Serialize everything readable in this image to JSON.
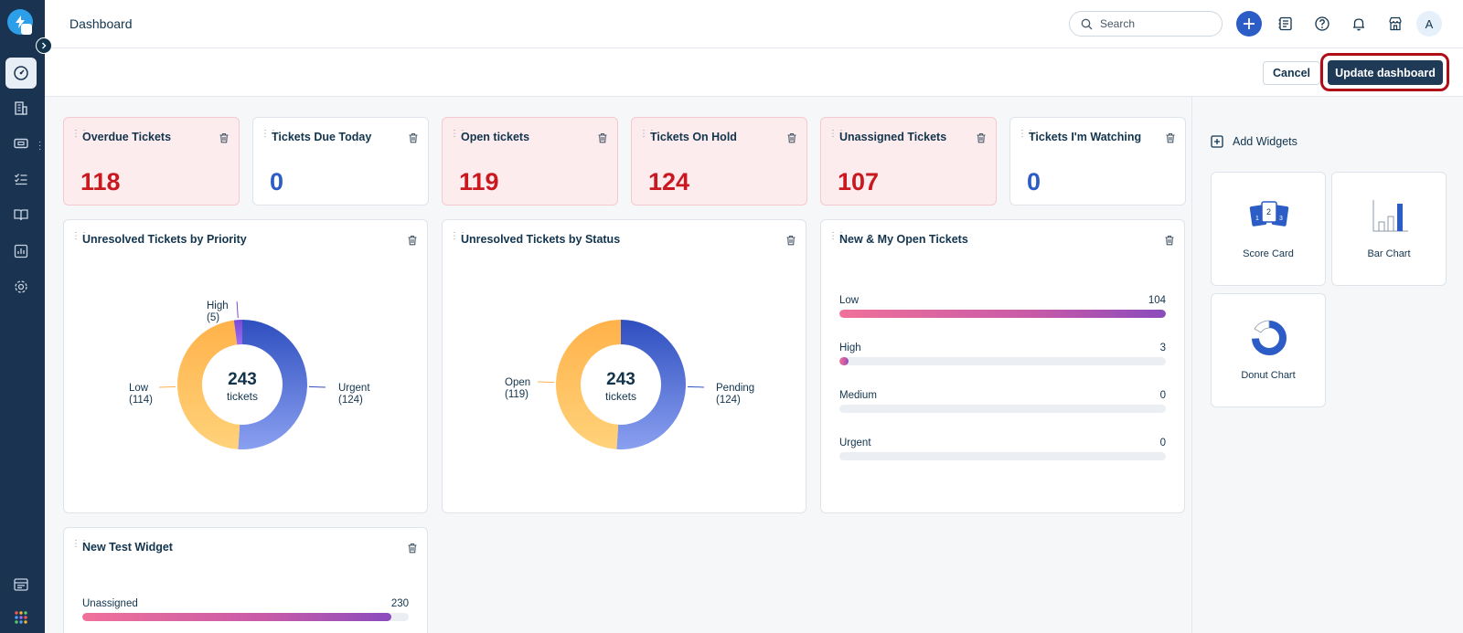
{
  "header": {
    "title": "Dashboard",
    "search_placeholder": "Search",
    "avatar_initial": "A"
  },
  "actions": {
    "cancel": "Cancel",
    "update": "Update dashboard"
  },
  "scorecards": [
    {
      "title": "Overdue Tickets",
      "value": "118",
      "alert": true
    },
    {
      "title": "Tickets Due Today",
      "value": "0",
      "alert": false
    },
    {
      "title": "Open tickets",
      "value": "119",
      "alert": true
    },
    {
      "title": "Tickets On Hold",
      "value": "124",
      "alert": true
    },
    {
      "title": "Unassigned Tickets",
      "value": "107",
      "alert": true
    },
    {
      "title": "Tickets I'm Watching",
      "value": "0",
      "alert": false
    }
  ],
  "priority_widget": {
    "title": "Unresolved Tickets by Priority",
    "total": "243",
    "unit": "tickets",
    "labels": {
      "high_name": "High",
      "high_count": "(5)",
      "low_name": "Low",
      "low_count": "(114)",
      "urgent_name": "Urgent",
      "urgent_count": "(124)"
    }
  },
  "status_widget": {
    "title": "Unresolved Tickets by Status",
    "total": "243",
    "unit": "tickets",
    "labels": {
      "open_name": "Open",
      "open_count": "(119)",
      "pending_name": "Pending",
      "pending_count": "(124)"
    }
  },
  "open_widget": {
    "title": "New & My Open Tickets",
    "rows": [
      {
        "label": "Low",
        "value": "104"
      },
      {
        "label": "High",
        "value": "3"
      },
      {
        "label": "Medium",
        "value": "0"
      },
      {
        "label": "Urgent",
        "value": "0"
      }
    ]
  },
  "test_widget": {
    "title": "New Test Widget",
    "rows": [
      {
        "label": "Unassigned",
        "value": "230"
      }
    ]
  },
  "panel": {
    "title": "Add Widgets",
    "widgets": [
      "Score Card",
      "Bar Chart",
      "Donut Chart"
    ]
  },
  "chart_data": [
    {
      "type": "pie",
      "title": "Unresolved Tickets by Priority",
      "categories": [
        "Urgent",
        "Low",
        "High"
      ],
      "values": [
        124,
        114,
        5
      ]
    },
    {
      "type": "pie",
      "title": "Unresolved Tickets by Status",
      "categories": [
        "Pending",
        "Open"
      ],
      "values": [
        124,
        119
      ]
    },
    {
      "type": "bar",
      "title": "New & My Open Tickets",
      "categories": [
        "Low",
        "High",
        "Medium",
        "Urgent"
      ],
      "values": [
        104,
        3,
        0,
        0
      ],
      "xlim": [
        0,
        104
      ]
    },
    {
      "type": "bar",
      "title": "New Test Widget",
      "categories": [
        "Unassigned"
      ],
      "values": [
        230
      ],
      "xlim": [
        0,
        243
      ]
    }
  ],
  "colors": {
    "sidebar": "#1a3350",
    "alert_value": "#c9181f",
    "normal_value": "#2c5cc5",
    "update_button": "#1e3a56"
  }
}
